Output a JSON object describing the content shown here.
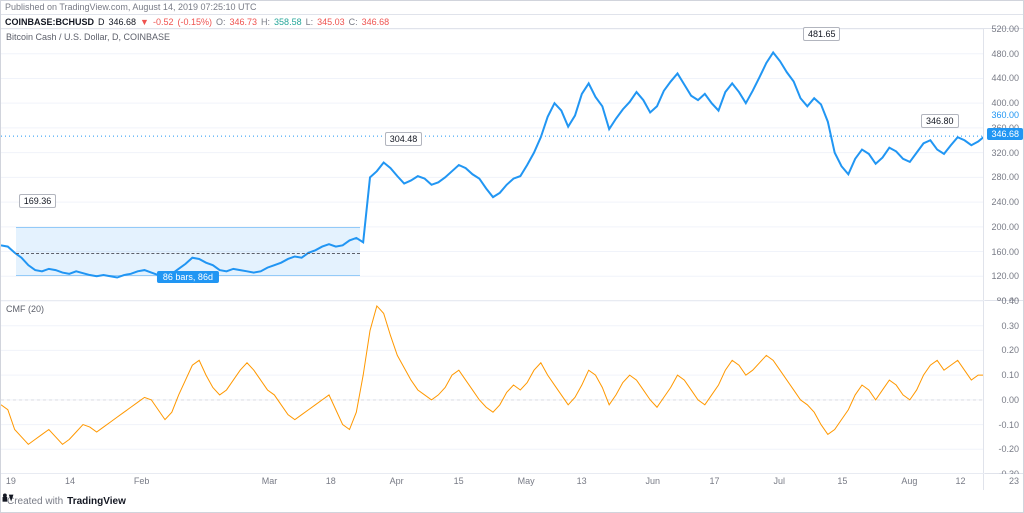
{
  "header": {
    "published_text": "Published on TradingView.com, August 14, 2019 07:25:10 UTC"
  },
  "ticker": {
    "symbol": "COINBASE:BCHUSD",
    "interval": "D",
    "last": "346.68",
    "change": "-0.52",
    "change_pct": "(-0.15%)",
    "o_label": "O:",
    "o": "346.73",
    "h_label": "H:",
    "h": "358.58",
    "l_label": "L:",
    "l": "345.03",
    "c_label": "C:",
    "c": "346.68",
    "arrow": "▼"
  },
  "price_pane": {
    "title": "Bitcoin Cash / U.S. Dollar, D, COINBASE",
    "y_min": 80,
    "y_max": 520,
    "y_ticks": [
      80,
      120,
      160,
      200,
      240,
      280,
      320,
      360,
      400,
      440,
      480,
      520
    ],
    "current_price": 346.68,
    "current_price_label": "346.68",
    "price_360_label": "360.00",
    "line_color": "#2196f3",
    "line_width": 2,
    "background": "#ffffff",
    "callouts": [
      {
        "label": "169.36",
        "x_pct": 1.8,
        "y_val": 230
      },
      {
        "label": "304.48",
        "x_pct": 39.0,
        "y_val": 330
      },
      {
        "label": "481.65",
        "x_pct": 81.5,
        "y_val": 500
      },
      {
        "label": "346.80",
        "x_pct": 93.5,
        "y_val": 360
      }
    ],
    "selection": {
      "x_start_pct": 1.5,
      "x_end_pct": 36.5,
      "y_top": 200,
      "y_bottom": 120,
      "mid_y": 160,
      "label": "86 bars, 86d"
    },
    "data": [
      [
        0,
        170
      ],
      [
        1,
        168
      ],
      [
        2,
        158
      ],
      [
        3,
        150
      ],
      [
        4,
        138
      ],
      [
        5,
        130
      ],
      [
        6,
        128
      ],
      [
        7,
        132
      ],
      [
        8,
        130
      ],
      [
        9,
        126
      ],
      [
        10,
        124
      ],
      [
        11,
        128
      ],
      [
        12,
        125
      ],
      [
        13,
        122
      ],
      [
        14,
        120
      ],
      [
        15,
        122
      ],
      [
        16,
        120
      ],
      [
        17,
        118
      ],
      [
        18,
        122
      ],
      [
        19,
        124
      ],
      [
        20,
        128
      ],
      [
        21,
        130
      ],
      [
        22,
        126
      ],
      [
        23,
        122
      ],
      [
        24,
        120
      ],
      [
        25,
        124
      ],
      [
        26,
        132
      ],
      [
        27,
        140
      ],
      [
        28,
        150
      ],
      [
        29,
        148
      ],
      [
        30,
        142
      ],
      [
        31,
        138
      ],
      [
        32,
        130
      ],
      [
        33,
        128
      ],
      [
        34,
        132
      ],
      [
        35,
        130
      ],
      [
        36,
        128
      ],
      [
        37,
        126
      ],
      [
        38,
        128
      ],
      [
        39,
        134
      ],
      [
        40,
        138
      ],
      [
        41,
        142
      ],
      [
        42,
        148
      ],
      [
        43,
        152
      ],
      [
        44,
        150
      ],
      [
        45,
        158
      ],
      [
        46,
        162
      ],
      [
        47,
        168
      ],
      [
        48,
        172
      ],
      [
        49,
        168
      ],
      [
        50,
        170
      ],
      [
        51,
        178
      ],
      [
        52,
        182
      ],
      [
        53,
        175
      ],
      [
        54,
        280
      ],
      [
        55,
        290
      ],
      [
        56,
        304
      ],
      [
        57,
        295
      ],
      [
        58,
        282
      ],
      [
        59,
        270
      ],
      [
        60,
        275
      ],
      [
        61,
        282
      ],
      [
        62,
        278
      ],
      [
        63,
        268
      ],
      [
        64,
        272
      ],
      [
        65,
        280
      ],
      [
        66,
        290
      ],
      [
        67,
        300
      ],
      [
        68,
        295
      ],
      [
        69,
        285
      ],
      [
        70,
        278
      ],
      [
        71,
        262
      ],
      [
        72,
        248
      ],
      [
        73,
        255
      ],
      [
        74,
        268
      ],
      [
        75,
        278
      ],
      [
        76,
        282
      ],
      [
        77,
        300
      ],
      [
        78,
        320
      ],
      [
        79,
        345
      ],
      [
        80,
        378
      ],
      [
        81,
        400
      ],
      [
        82,
        388
      ],
      [
        83,
        362
      ],
      [
        84,
        380
      ],
      [
        85,
        415
      ],
      [
        86,
        432
      ],
      [
        87,
        410
      ],
      [
        88,
        395
      ],
      [
        89,
        358
      ],
      [
        90,
        375
      ],
      [
        91,
        390
      ],
      [
        92,
        402
      ],
      [
        93,
        418
      ],
      [
        94,
        405
      ],
      [
        95,
        385
      ],
      [
        96,
        395
      ],
      [
        97,
        420
      ],
      [
        98,
        435
      ],
      [
        99,
        448
      ],
      [
        100,
        430
      ],
      [
        101,
        412
      ],
      [
        102,
        405
      ],
      [
        103,
        415
      ],
      [
        104,
        400
      ],
      [
        105,
        388
      ],
      [
        106,
        418
      ],
      [
        107,
        432
      ],
      [
        108,
        418
      ],
      [
        109,
        400
      ],
      [
        110,
        420
      ],
      [
        111,
        442
      ],
      [
        112,
        465
      ],
      [
        113,
        482
      ],
      [
        114,
        468
      ],
      [
        115,
        450
      ],
      [
        116,
        435
      ],
      [
        117,
        408
      ],
      [
        118,
        395
      ],
      [
        119,
        408
      ],
      [
        120,
        398
      ],
      [
        121,
        370
      ],
      [
        122,
        320
      ],
      [
        123,
        298
      ],
      [
        124,
        285
      ],
      [
        125,
        310
      ],
      [
        126,
        325
      ],
      [
        127,
        318
      ],
      [
        128,
        302
      ],
      [
        129,
        312
      ],
      [
        130,
        328
      ],
      [
        131,
        322
      ],
      [
        132,
        310
      ],
      [
        133,
        305
      ],
      [
        134,
        320
      ],
      [
        135,
        335
      ],
      [
        136,
        340
      ],
      [
        137,
        325
      ],
      [
        138,
        318
      ],
      [
        139,
        332
      ],
      [
        140,
        345
      ],
      [
        141,
        340
      ],
      [
        142,
        332
      ],
      [
        143,
        338
      ],
      [
        144,
        347
      ]
    ]
  },
  "cmf_pane": {
    "title": "CMF (20)",
    "y_min": -0.3,
    "y_max": 0.4,
    "y_ticks": [
      -0.3,
      -0.2,
      -0.1,
      0.0,
      0.1,
      0.2,
      0.3,
      0.4
    ],
    "line_color": "#ff9800",
    "line_width": 1,
    "zero_color": "#808080",
    "data": [
      [
        0,
        -0.02
      ],
      [
        1,
        -0.04
      ],
      [
        2,
        -0.12
      ],
      [
        3,
        -0.15
      ],
      [
        4,
        -0.18
      ],
      [
        5,
        -0.16
      ],
      [
        6,
        -0.14
      ],
      [
        7,
        -0.12
      ],
      [
        8,
        -0.15
      ],
      [
        9,
        -0.18
      ],
      [
        10,
        -0.16
      ],
      [
        11,
        -0.13
      ],
      [
        12,
        -0.1
      ],
      [
        13,
        -0.11
      ],
      [
        14,
        -0.13
      ],
      [
        15,
        -0.11
      ],
      [
        16,
        -0.09
      ],
      [
        17,
        -0.07
      ],
      [
        18,
        -0.05
      ],
      [
        19,
        -0.03
      ],
      [
        20,
        -0.01
      ],
      [
        21,
        0.01
      ],
      [
        22,
        0.0
      ],
      [
        23,
        -0.04
      ],
      [
        24,
        -0.08
      ],
      [
        25,
        -0.05
      ],
      [
        26,
        0.02
      ],
      [
        27,
        0.08
      ],
      [
        28,
        0.14
      ],
      [
        29,
        0.16
      ],
      [
        30,
        0.1
      ],
      [
        31,
        0.05
      ],
      [
        32,
        0.02
      ],
      [
        33,
        0.04
      ],
      [
        34,
        0.08
      ],
      [
        35,
        0.12
      ],
      [
        36,
        0.15
      ],
      [
        37,
        0.12
      ],
      [
        38,
        0.08
      ],
      [
        39,
        0.04
      ],
      [
        40,
        0.02
      ],
      [
        41,
        -0.02
      ],
      [
        42,
        -0.06
      ],
      [
        43,
        -0.08
      ],
      [
        44,
        -0.06
      ],
      [
        45,
        -0.04
      ],
      [
        46,
        -0.02
      ],
      [
        47,
        0.0
      ],
      [
        48,
        0.02
      ],
      [
        49,
        -0.04
      ],
      [
        50,
        -0.1
      ],
      [
        51,
        -0.12
      ],
      [
        52,
        -0.05
      ],
      [
        53,
        0.1
      ],
      [
        54,
        0.28
      ],
      [
        55,
        0.38
      ],
      [
        56,
        0.35
      ],
      [
        57,
        0.26
      ],
      [
        58,
        0.18
      ],
      [
        59,
        0.13
      ],
      [
        60,
        0.08
      ],
      [
        61,
        0.04
      ],
      [
        62,
        0.02
      ],
      [
        63,
        0.0
      ],
      [
        64,
        0.02
      ],
      [
        65,
        0.05
      ],
      [
        66,
        0.1
      ],
      [
        67,
        0.12
      ],
      [
        68,
        0.08
      ],
      [
        69,
        0.04
      ],
      [
        70,
        0.0
      ],
      [
        71,
        -0.03
      ],
      [
        72,
        -0.05
      ],
      [
        73,
        -0.02
      ],
      [
        74,
        0.03
      ],
      [
        75,
        0.06
      ],
      [
        76,
        0.04
      ],
      [
        77,
        0.07
      ],
      [
        78,
        0.12
      ],
      [
        79,
        0.15
      ],
      [
        80,
        0.1
      ],
      [
        81,
        0.06
      ],
      [
        82,
        0.02
      ],
      [
        83,
        -0.02
      ],
      [
        84,
        0.01
      ],
      [
        85,
        0.06
      ],
      [
        86,
        0.12
      ],
      [
        87,
        0.1
      ],
      [
        88,
        0.05
      ],
      [
        89,
        -0.02
      ],
      [
        90,
        0.02
      ],
      [
        91,
        0.07
      ],
      [
        92,
        0.1
      ],
      [
        93,
        0.08
      ],
      [
        94,
        0.04
      ],
      [
        95,
        0.0
      ],
      [
        96,
        -0.03
      ],
      [
        97,
        0.01
      ],
      [
        98,
        0.05
      ],
      [
        99,
        0.1
      ],
      [
        100,
        0.08
      ],
      [
        101,
        0.04
      ],
      [
        102,
        0.0
      ],
      [
        103,
        -0.02
      ],
      [
        104,
        0.02
      ],
      [
        105,
        0.06
      ],
      [
        106,
        0.12
      ],
      [
        107,
        0.16
      ],
      [
        108,
        0.14
      ],
      [
        109,
        0.1
      ],
      [
        110,
        0.12
      ],
      [
        111,
        0.15
      ],
      [
        112,
        0.18
      ],
      [
        113,
        0.16
      ],
      [
        114,
        0.12
      ],
      [
        115,
        0.08
      ],
      [
        116,
        0.04
      ],
      [
        117,
        0.0
      ],
      [
        118,
        -0.02
      ],
      [
        119,
        -0.05
      ],
      [
        120,
        -0.1
      ],
      [
        121,
        -0.14
      ],
      [
        122,
        -0.12
      ],
      [
        123,
        -0.08
      ],
      [
        124,
        -0.04
      ],
      [
        125,
        0.02
      ],
      [
        126,
        0.06
      ],
      [
        127,
        0.04
      ],
      [
        128,
        0.0
      ],
      [
        129,
        0.04
      ],
      [
        130,
        0.08
      ],
      [
        131,
        0.06
      ],
      [
        132,
        0.02
      ],
      [
        133,
        0.0
      ],
      [
        134,
        0.04
      ],
      [
        135,
        0.1
      ],
      [
        136,
        0.14
      ],
      [
        137,
        0.16
      ],
      [
        138,
        0.12
      ],
      [
        139,
        0.14
      ],
      [
        140,
        0.16
      ],
      [
        141,
        0.12
      ],
      [
        142,
        0.08
      ],
      [
        143,
        0.1
      ],
      [
        144,
        0.1
      ]
    ]
  },
  "x_axis": {
    "ticks": [
      {
        "label": "19",
        "x_pct": 0.5
      },
      {
        "label": "14",
        "x_pct": 6.5
      },
      {
        "label": "Feb",
        "x_pct": 13.5
      },
      {
        "label": "Mar",
        "x_pct": 26.5
      },
      {
        "label": "18",
        "x_pct": 33
      },
      {
        "label": "Apr",
        "x_pct": 39.5
      },
      {
        "label": "15",
        "x_pct": 46
      },
      {
        "label": "May",
        "x_pct": 52.5
      },
      {
        "label": "13",
        "x_pct": 58.5
      },
      {
        "label": "Jun",
        "x_pct": 65.5
      },
      {
        "label": "17",
        "x_pct": 72
      },
      {
        "label": "Jul",
        "x_pct": 78.5
      },
      {
        "label": "15",
        "x_pct": 85
      },
      {
        "label": "Aug",
        "x_pct": 91.5
      },
      {
        "label": "12",
        "x_pct": 97
      }
    ],
    "end_label": "23"
  },
  "footer": {
    "text": "Created with",
    "brand": "TradingView"
  }
}
